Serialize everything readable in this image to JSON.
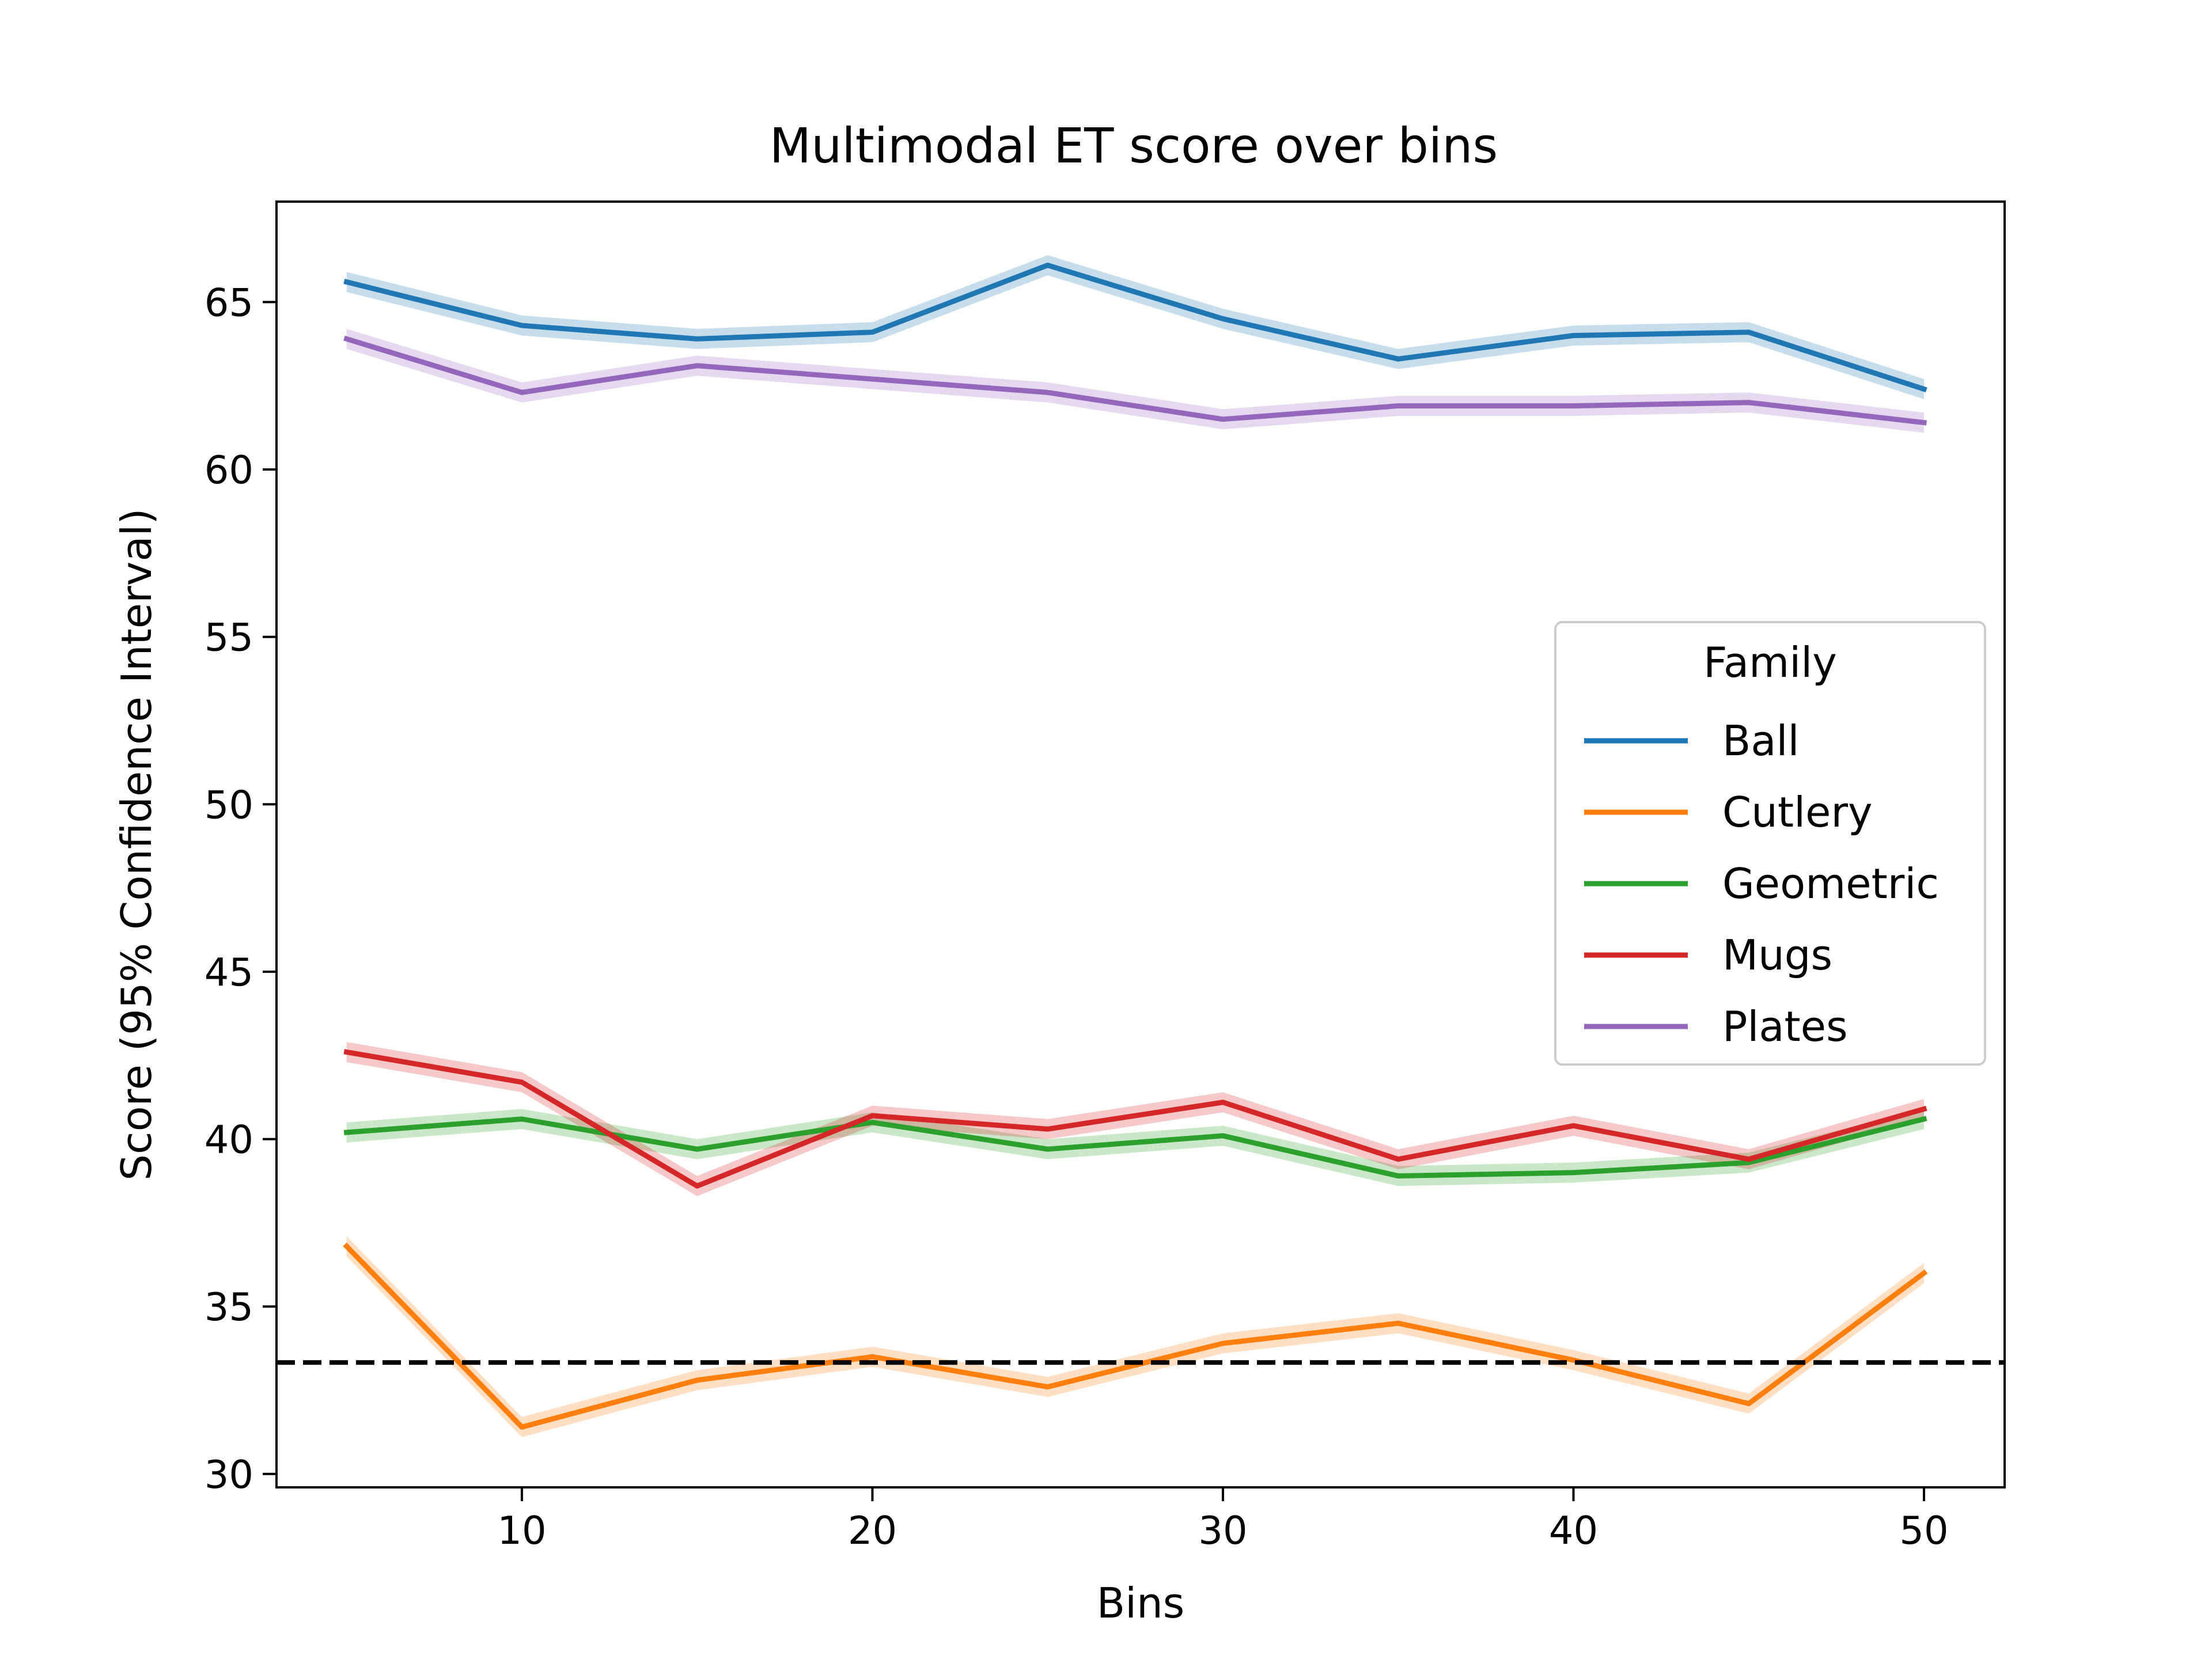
{
  "chart_data": {
    "type": "line",
    "title": "Multimodal ET score over bins",
    "xlabel": "Bins",
    "ylabel": "Score (95% Confidence Interval)",
    "xlim": [
      3,
      52.3
    ],
    "ylim": [
      29.6,
      68.0
    ],
    "xticks": [
      10,
      20,
      30,
      40,
      50
    ],
    "yticks": [
      30,
      35,
      40,
      45,
      50,
      55,
      60,
      65
    ],
    "x": [
      5,
      10,
      15,
      20,
      25,
      30,
      35,
      40,
      45,
      50
    ],
    "legend": {
      "title": "Family",
      "placement": "center-right"
    },
    "reference_line": {
      "y": 33.33,
      "style": "dashed",
      "color": "#000000"
    },
    "series": [
      {
        "name": "Ball",
        "color": "#1f77b4",
        "values": [
          65.6,
          64.3,
          63.9,
          64.1,
          66.1,
          64.5,
          63.3,
          64.0,
          64.1,
          62.4
        ]
      },
      {
        "name": "Cutlery",
        "color": "#ff7f0e",
        "values": [
          36.8,
          31.4,
          32.8,
          33.5,
          32.6,
          33.9,
          34.5,
          33.4,
          32.1,
          36.0
        ]
      },
      {
        "name": "Geometric",
        "color": "#2ca02c",
        "values": [
          40.2,
          40.6,
          39.7,
          40.5,
          39.7,
          40.1,
          38.9,
          39.0,
          39.3,
          40.6
        ]
      },
      {
        "name": "Mugs",
        "color": "#d62728",
        "values": [
          42.6,
          41.7,
          38.6,
          40.7,
          40.3,
          41.1,
          39.4,
          40.4,
          39.4,
          40.9
        ]
      },
      {
        "name": "Plates",
        "color": "#9467bd",
        "values": [
          63.9,
          62.3,
          63.1,
          62.7,
          62.3,
          61.5,
          61.9,
          61.9,
          62.0,
          61.4
        ]
      }
    ]
  }
}
